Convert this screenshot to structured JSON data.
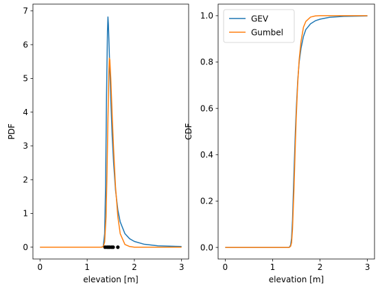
{
  "colors": {
    "gev": "#1f77b4",
    "gumbel": "#ff7f0e",
    "points": "#000000"
  },
  "chart_data": [
    {
      "type": "line",
      "xlabel": "elevation [m]",
      "ylabel": "PDF",
      "xlim": [
        -0.15,
        3.15
      ],
      "ylim": [
        -0.35,
        7.2
      ],
      "xticks": [
        0,
        1,
        2,
        3
      ],
      "yticks": [
        0,
        1,
        2,
        3,
        4,
        5,
        6,
        7
      ],
      "legend": "none",
      "grid": false,
      "series": [
        {
          "name": "GEV",
          "color_key": "gev",
          "x": [
            0,
            1.3,
            1.34,
            1.37,
            1.39,
            1.41,
            1.43,
            1.44,
            1.45,
            1.47,
            1.5,
            1.53,
            1.56,
            1.6,
            1.65,
            1.7,
            1.8,
            1.9,
            2.0,
            2.2,
            2.5,
            3.0
          ],
          "y": [
            0,
            0.0,
            0.02,
            0.4,
            1.8,
            4.5,
            6.4,
            6.82,
            6.6,
            5.7,
            4.4,
            3.3,
            2.5,
            1.7,
            1.1,
            0.75,
            0.4,
            0.25,
            0.17,
            0.09,
            0.04,
            0.02
          ]
        },
        {
          "name": "Gumbel",
          "color_key": "gumbel",
          "x": [
            0,
            1.3,
            1.34,
            1.37,
            1.4,
            1.42,
            1.44,
            1.46,
            1.47,
            1.48,
            1.5,
            1.53,
            1.56,
            1.6,
            1.65,
            1.7,
            1.8,
            1.9,
            2.0,
            2.2,
            2.5,
            3.0
          ],
          "y": [
            0,
            0.0,
            0.01,
            0.15,
            0.9,
            2.2,
            3.8,
            5.2,
            5.6,
            5.55,
            5.0,
            3.9,
            2.9,
            1.8,
            0.9,
            0.4,
            0.08,
            0.02,
            0.0,
            0.0,
            0.0,
            0.0
          ]
        }
      ],
      "points": {
        "x": [
          1.38,
          1.42,
          1.45,
          1.48,
          1.52,
          1.55,
          1.65
        ],
        "y": [
          0,
          0,
          0,
          0,
          0,
          0,
          0
        ]
      }
    },
    {
      "type": "line",
      "xlabel": "elevation [m]",
      "ylabel": "CDF",
      "xlim": [
        -0.15,
        3.15
      ],
      "ylim": [
        -0.05,
        1.05
      ],
      "xticks": [
        0,
        1,
        2,
        3
      ],
      "yticks": [
        0.0,
        0.2,
        0.4,
        0.6,
        0.8,
        1.0
      ],
      "ytick_labels": [
        "0.0",
        "0.2",
        "0.4",
        "0.6",
        "0.8",
        "1.0"
      ],
      "legend": "top-left",
      "grid": false,
      "series": [
        {
          "name": "GEV",
          "color_key": "gev",
          "x": [
            0,
            1.3,
            1.35,
            1.38,
            1.4,
            1.42,
            1.45,
            1.48,
            1.5,
            1.53,
            1.56,
            1.6,
            1.65,
            1.7,
            1.8,
            1.9,
            2.0,
            2.2,
            2.5,
            3.0
          ],
          "y": [
            0,
            0.0,
            0.0,
            0.01,
            0.04,
            0.12,
            0.32,
            0.5,
            0.6,
            0.72,
            0.8,
            0.86,
            0.91,
            0.94,
            0.965,
            0.978,
            0.985,
            0.993,
            0.997,
            0.999
          ]
        },
        {
          "name": "Gumbel",
          "color_key": "gumbel",
          "x": [
            0,
            1.3,
            1.35,
            1.38,
            1.4,
            1.42,
            1.45,
            1.48,
            1.5,
            1.53,
            1.56,
            1.6,
            1.65,
            1.7,
            1.8,
            1.9,
            2.0,
            2.2,
            2.5,
            3.0
          ],
          "y": [
            0,
            0.0,
            0.0,
            0.005,
            0.02,
            0.08,
            0.25,
            0.45,
            0.57,
            0.71,
            0.81,
            0.89,
            0.95,
            0.975,
            0.994,
            0.999,
            1.0,
            1.0,
            1.0,
            1.0
          ]
        }
      ]
    }
  ]
}
